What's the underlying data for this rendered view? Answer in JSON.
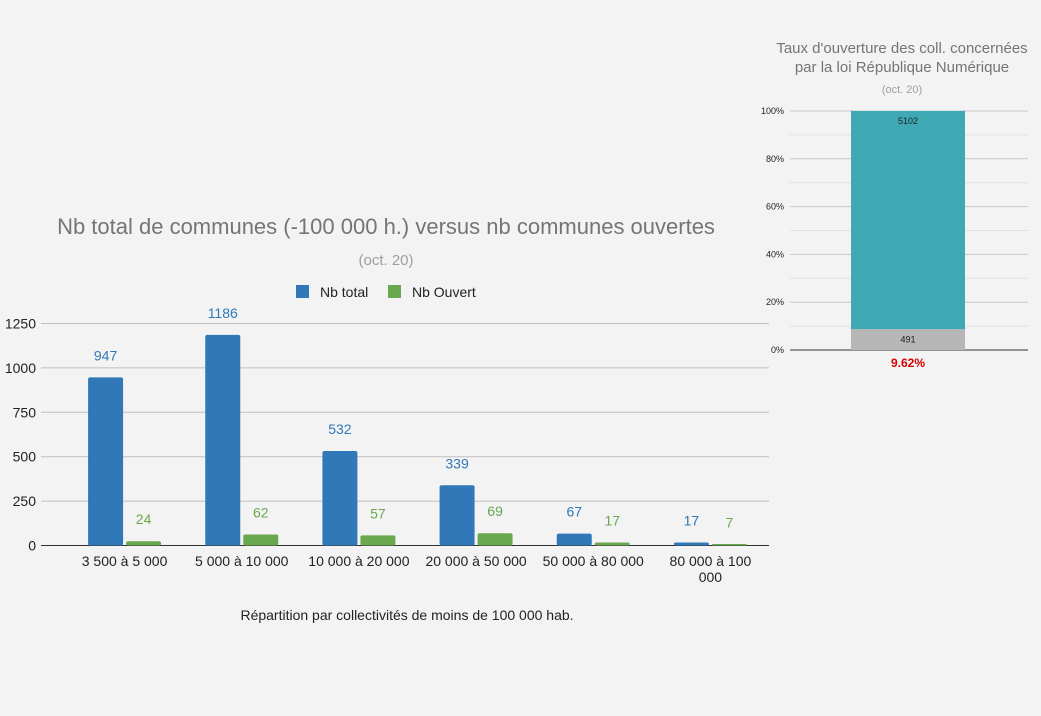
{
  "chart_data": [
    {
      "type": "bar",
      "title": "Nb total de communes (-100 000 h.) versus nb communes ouvertes",
      "subtitle": "(oct. 20)",
      "xlabel": "Répartition par collectivités de moins de 100 000 hab.",
      "ylabel": "",
      "ylim": [
        0,
        1250
      ],
      "yticks": [
        "0",
        "250",
        "500",
        "750",
        "1000",
        "1250"
      ],
      "legend_position": "top",
      "categories": [
        [
          "3 500 à 5 000"
        ],
        [
          "5 000 à 10 000"
        ],
        [
          "10 000 à 20 000"
        ],
        [
          "20 000 à 50 000"
        ],
        [
          "50 000 à 80 000"
        ],
        [
          "80 000 à 100",
          "000"
        ]
      ],
      "series": [
        {
          "name": "Nb total",
          "color": "#3078b8",
          "values": [
            947,
            1186,
            532,
            339,
            67,
            17
          ]
        },
        {
          "name": "Nb Ouvert",
          "color": "#6aa84f",
          "values": [
            24,
            62,
            57,
            69,
            17,
            7
          ]
        }
      ]
    },
    {
      "type": "bar",
      "stacked": true,
      "normalized": true,
      "title_lines": [
        "Taux d'ouverture des coll. concernées",
        "par la loi République Numérique"
      ],
      "subtitle": "(oct. 20)",
      "ylim": [
        0,
        100
      ],
      "yticks": [
        "0%",
        "20%",
        "40%",
        "60%",
        "80%",
        "100%"
      ],
      "segments": [
        {
          "value": 491,
          "label": "491",
          "color": "#b7b7b7"
        },
        {
          "value": 5102,
          "label": "5102",
          "color": "#3ea9b5"
        }
      ],
      "rate_label": "9.62%"
    }
  ]
}
